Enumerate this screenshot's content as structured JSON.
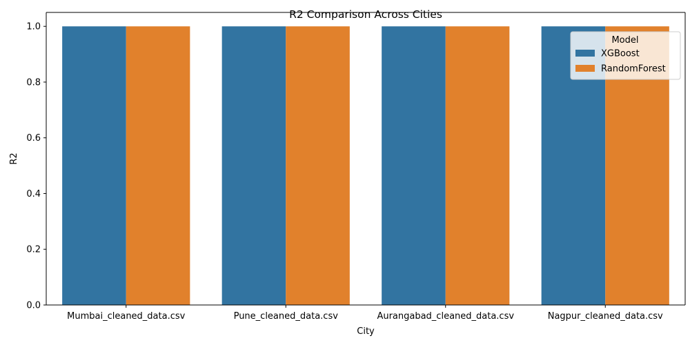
{
  "chart_data": {
    "type": "bar",
    "title": "R2 Comparison Across Cities",
    "xlabel": "City",
    "ylabel": "R2",
    "categories": [
      "Mumbai_cleaned_data.csv",
      "Pune_cleaned_data.csv",
      "Aurangabad_cleaned_data.csv",
      "Nagpur_cleaned_data.csv"
    ],
    "series": [
      {
        "name": "XGBoost",
        "color": "#3274a1",
        "values": [
          1.0,
          1.0,
          1.0,
          1.0
        ]
      },
      {
        "name": "RandomForest",
        "color": "#e1812c",
        "values": [
          1.0,
          1.0,
          1.0,
          1.0
        ]
      }
    ],
    "ylim": [
      0,
      1.05
    ],
    "yticks": [
      "0.0",
      "0.2",
      "0.4",
      "0.6",
      "0.8",
      "1.0"
    ],
    "grid": false,
    "legend": {
      "title": "Model",
      "placement": "top-right"
    }
  }
}
